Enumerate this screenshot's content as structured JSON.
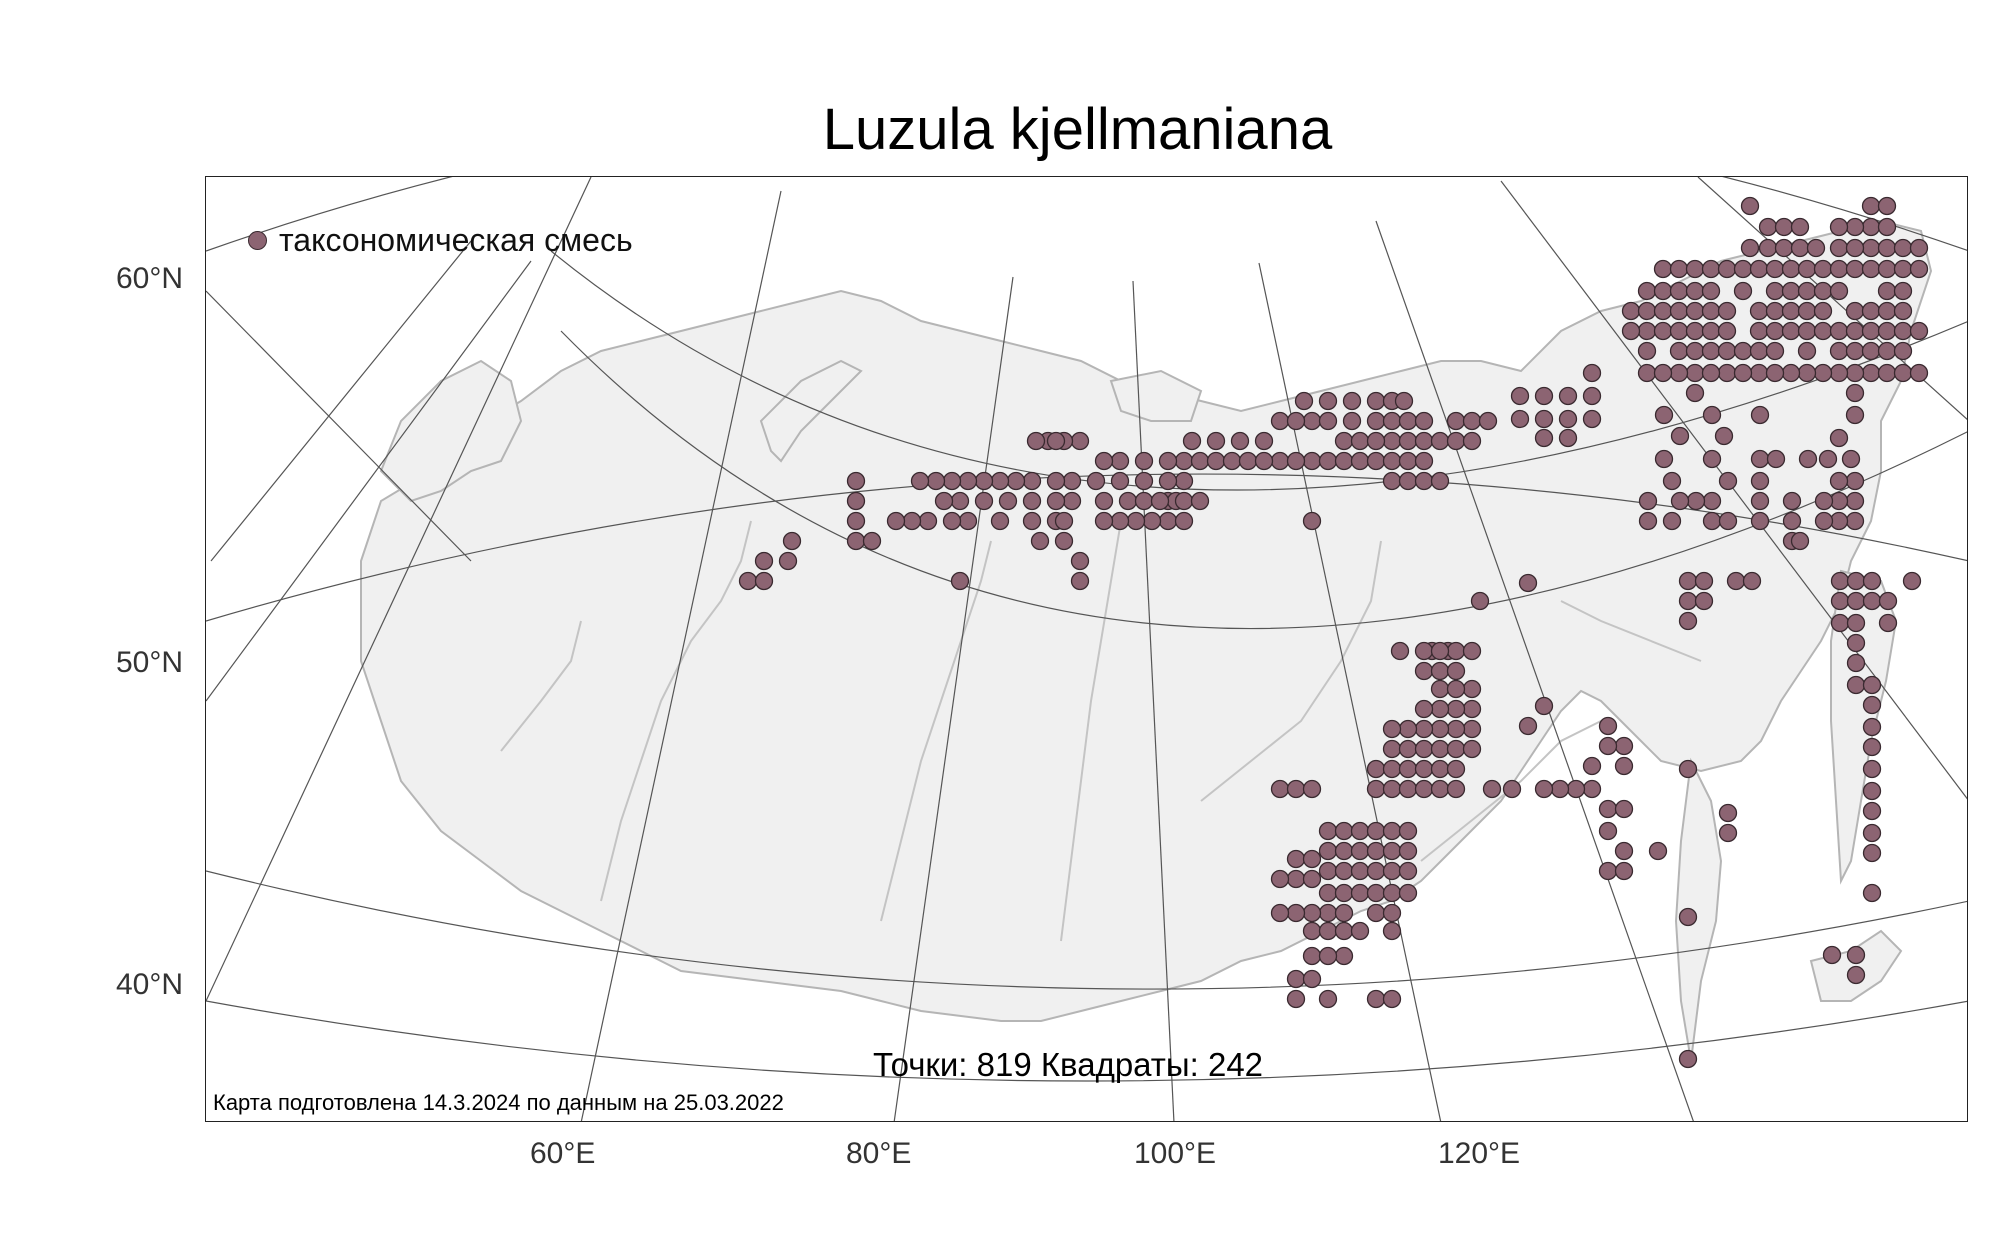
{
  "title": "Luzula kjellmaniana",
  "legend": {
    "label": "таксономическая смесь",
    "color": "#8c6472"
  },
  "stats": "Точки: 819 Квадраты: 242",
  "footnote": "Карта подготовлена 14.3.2024 по данным на 25.03.2022",
  "lat_ticks": [
    "60°N",
    "50°N",
    "40°N"
  ],
  "lon_ticks": [
    "60°E",
    "80°E",
    "100°E",
    "120°E"
  ],
  "colors": {
    "land": "#f0f0f0",
    "coast": "#b5b5b5",
    "river": "#c4c4c4",
    "grid": "#555555",
    "dot": "#8c6472",
    "dot_edge": "#3a2a30"
  },
  "occurrences": [
    [
      1749,
      205
    ],
    [
      1749,
      247
    ],
    [
      1767,
      247
    ],
    [
      1783,
      247
    ],
    [
      1799,
      247
    ],
    [
      1815,
      247
    ],
    [
      1767,
      226
    ],
    [
      1783,
      226
    ],
    [
      1799,
      226
    ],
    [
      1662,
      268
    ],
    [
      1678,
      268
    ],
    [
      1694,
      268
    ],
    [
      1710,
      268
    ],
    [
      1726,
      268
    ],
    [
      1742,
      268
    ],
    [
      1758,
      268
    ],
    [
      1774,
      268
    ],
    [
      1790,
      268
    ],
    [
      1806,
      268
    ],
    [
      1822,
      268
    ],
    [
      1838,
      268
    ],
    [
      1854,
      268
    ],
    [
      1870,
      268
    ],
    [
      1886,
      268
    ],
    [
      1902,
      268
    ],
    [
      1646,
      290
    ],
    [
      1662,
      290
    ],
    [
      1678,
      290
    ],
    [
      1694,
      290
    ],
    [
      1710,
      290
    ],
    [
      1742,
      290
    ],
    [
      1774,
      290
    ],
    [
      1790,
      290
    ],
    [
      1806,
      290
    ],
    [
      1822,
      290
    ],
    [
      1838,
      290
    ],
    [
      1630,
      310
    ],
    [
      1646,
      310
    ],
    [
      1662,
      310
    ],
    [
      1678,
      310
    ],
    [
      1694,
      310
    ],
    [
      1710,
      310
    ],
    [
      1726,
      310
    ],
    [
      1758,
      310
    ],
    [
      1774,
      310
    ],
    [
      1790,
      310
    ],
    [
      1806,
      310
    ],
    [
      1822,
      310
    ],
    [
      1646,
      330
    ],
    [
      1662,
      330
    ],
    [
      1678,
      330
    ],
    [
      1694,
      330
    ],
    [
      1710,
      330
    ],
    [
      1726,
      330
    ],
    [
      1758,
      330
    ],
    [
      1774,
      330
    ],
    [
      1790,
      330
    ],
    [
      1806,
      330
    ],
    [
      1822,
      330
    ],
    [
      1646,
      350
    ],
    [
      1678,
      350
    ],
    [
      1694,
      350
    ],
    [
      1710,
      350
    ],
    [
      1726,
      350
    ],
    [
      1742,
      350
    ],
    [
      1758,
      350
    ],
    [
      1774,
      350
    ],
    [
      1806,
      350
    ],
    [
      1838,
      350
    ],
    [
      1854,
      350
    ],
    [
      1870,
      350
    ],
    [
      1886,
      350
    ],
    [
      1646,
      372
    ],
    [
      1694,
      372
    ],
    [
      1726,
      372
    ],
    [
      1758,
      372
    ],
    [
      1870,
      372
    ],
    [
      1886,
      372
    ],
    [
      1902,
      372
    ],
    [
      1918,
      372
    ],
    [
      1838,
      330
    ],
    [
      1854,
      330
    ],
    [
      1870,
      330
    ],
    [
      1886,
      330
    ],
    [
      1902,
      330
    ],
    [
      1918,
      330
    ],
    [
      1854,
      310
    ],
    [
      1870,
      310
    ],
    [
      1886,
      310
    ],
    [
      1902,
      310
    ],
    [
      1886,
      290
    ],
    [
      1902,
      290
    ],
    [
      1886,
      268
    ],
    [
      1870,
      205
    ],
    [
      1886,
      205
    ],
    [
      1870,
      226
    ],
    [
      1886,
      226
    ],
    [
      1870,
      247
    ],
    [
      1886,
      247
    ],
    [
      1902,
      247
    ],
    [
      1918,
      247
    ],
    [
      1902,
      268
    ],
    [
      1918,
      268
    ],
    [
      1854,
      226
    ],
    [
      1838,
      226
    ],
    [
      1838,
      247
    ],
    [
      1854,
      247
    ],
    [
      1886,
      350
    ],
    [
      1902,
      350
    ],
    [
      1854,
      372
    ],
    [
      1854,
      392
    ],
    [
      1854,
      414
    ],
    [
      1870,
      330
    ],
    [
      1870,
      350
    ],
    [
      1854,
      350
    ],
    [
      1870,
      372
    ],
    [
      1838,
      372
    ],
    [
      1822,
      372
    ],
    [
      1806,
      372
    ],
    [
      1790,
      372
    ],
    [
      1774,
      372
    ],
    [
      1758,
      372
    ],
    [
      1742,
      372
    ],
    [
      1726,
      372
    ],
    [
      1710,
      372
    ],
    [
      1694,
      372
    ],
    [
      1678,
      372
    ],
    [
      1662,
      372
    ],
    [
      1646,
      372
    ],
    [
      1694,
      392
    ],
    [
      1662,
      330
    ],
    [
      1630,
      330
    ],
    [
      1646,
      330
    ],
    [
      1519,
      395
    ],
    [
      1543,
      395
    ],
    [
      1567,
      395
    ],
    [
      1591,
      395
    ],
    [
      1519,
      418
    ],
    [
      1543,
      418
    ],
    [
      1567,
      418
    ],
    [
      1591,
      418
    ],
    [
      1543,
      437
    ],
    [
      1567,
      437
    ],
    [
      1591,
      372
    ],
    [
      1663,
      414
    ],
    [
      1711,
      414
    ],
    [
      1759,
      414
    ],
    [
      1679,
      435
    ],
    [
      1723,
      435
    ],
    [
      1663,
      458
    ],
    [
      1711,
      458
    ],
    [
      1759,
      458
    ],
    [
      1775,
      458
    ],
    [
      1807,
      458
    ],
    [
      1827,
      458
    ],
    [
      1850,
      458
    ],
    [
      1838,
      437
    ],
    [
      1854,
      480
    ],
    [
      1838,
      480
    ],
    [
      1854,
      500
    ],
    [
      1838,
      500
    ],
    [
      1854,
      520
    ],
    [
      1838,
      520
    ],
    [
      1711,
      500
    ],
    [
      1759,
      500
    ],
    [
      1791,
      500
    ],
    [
      1823,
      500
    ],
    [
      1647,
      520
    ],
    [
      1671,
      520
    ],
    [
      1711,
      520
    ],
    [
      1727,
      520
    ],
    [
      1759,
      520
    ],
    [
      1791,
      520
    ],
    [
      1823,
      520
    ],
    [
      1791,
      540
    ],
    [
      1799,
      540
    ],
    [
      1695,
      500
    ],
    [
      1679,
      500
    ],
    [
      1647,
      500
    ],
    [
      1727,
      480
    ],
    [
      1759,
      480
    ],
    [
      1671,
      480
    ],
    [
      1687,
      580
    ],
    [
      1703,
      580
    ],
    [
      1735,
      580
    ],
    [
      1751,
      580
    ],
    [
      1687,
      600
    ],
    [
      1703,
      600
    ],
    [
      1687,
      620
    ],
    [
      1839,
      580
    ],
    [
      1855,
      580
    ],
    [
      1871,
      580
    ],
    [
      1839,
      600
    ],
    [
      1855,
      600
    ],
    [
      1839,
      622
    ],
    [
      1855,
      622
    ],
    [
      1871,
      600
    ],
    [
      1887,
      600
    ],
    [
      1887,
      622
    ],
    [
      1855,
      642
    ],
    [
      1855,
      662
    ],
    [
      1855,
      684
    ],
    [
      1871,
      684
    ],
    [
      1871,
      704
    ],
    [
      1871,
      726
    ],
    [
      1871,
      746
    ],
    [
      1871,
      768
    ],
    [
      1871,
      790
    ],
    [
      1871,
      810
    ],
    [
      1871,
      832
    ],
    [
      1871,
      852
    ],
    [
      1871,
      892
    ],
    [
      1911,
      580
    ],
    [
      1687,
      768
    ],
    [
      1727,
      812
    ],
    [
      1727,
      832
    ],
    [
      1687,
      916
    ],
    [
      1831,
      954
    ],
    [
      1855,
      954
    ],
    [
      1855,
      974
    ],
    [
      1687,
      1058
    ],
    [
      1527,
      582
    ],
    [
      1479,
      600
    ],
    [
      1607,
      725
    ],
    [
      1623,
      745
    ],
    [
      1607,
      745
    ],
    [
      1591,
      765
    ],
    [
      1623,
      765
    ],
    [
      1591,
      788
    ],
    [
      1575,
      788
    ],
    [
      1559,
      788
    ],
    [
      1543,
      788
    ],
    [
      1543,
      705
    ],
    [
      1527,
      725
    ],
    [
      1511,
      788
    ],
    [
      1491,
      788
    ],
    [
      1607,
      808
    ],
    [
      1623,
      808
    ],
    [
      1607,
      830
    ],
    [
      1623,
      850
    ],
    [
      1607,
      870
    ],
    [
      1623,
      870
    ],
    [
      1657,
      850
    ],
    [
      1303,
      400
    ],
    [
      1327,
      400
    ],
    [
      1351,
      400
    ],
    [
      1375,
      400
    ],
    [
      1391,
      400
    ],
    [
      1403,
      400
    ],
    [
      1311,
      420
    ],
    [
      1327,
      420
    ],
    [
      1351,
      420
    ],
    [
      1375,
      420
    ],
    [
      1391,
      420
    ],
    [
      1407,
      420
    ],
    [
      1343,
      440
    ],
    [
      1391,
      440
    ],
    [
      1407,
      440
    ],
    [
      1423,
      440
    ],
    [
      1439,
      440
    ],
    [
      1455,
      440
    ],
    [
      1471,
      440
    ],
    [
      1311,
      460
    ],
    [
      1327,
      460
    ],
    [
      1343,
      460
    ],
    [
      1359,
      460
    ],
    [
      1375,
      460
    ],
    [
      1391,
      460
    ],
    [
      1407,
      460
    ],
    [
      1423,
      460
    ],
    [
      1279,
      420
    ],
    [
      1295,
      420
    ],
    [
      1359,
      440
    ],
    [
      1375,
      440
    ],
    [
      1391,
      480
    ],
    [
      1407,
      480
    ],
    [
      1423,
      480
    ],
    [
      1439,
      480
    ],
    [
      1455,
      420
    ],
    [
      1471,
      420
    ],
    [
      1487,
      420
    ],
    [
      1423,
      420
    ],
    [
      1407,
      480
    ],
    [
      1391,
      480
    ],
    [
      1191,
      440
    ],
    [
      1215,
      440
    ],
    [
      1239,
      440
    ],
    [
      1263,
      440
    ],
    [
      1279,
      460
    ],
    [
      1295,
      460
    ],
    [
      1311,
      460
    ],
    [
      1183,
      460
    ],
    [
      1199,
      460
    ],
    [
      1215,
      460
    ],
    [
      1231,
      460
    ],
    [
      1247,
      460
    ],
    [
      1263,
      460
    ],
    [
      1167,
      460
    ],
    [
      1143,
      460
    ],
    [
      1119,
      460
    ],
    [
      1103,
      460
    ],
    [
      1079,
      440
    ],
    [
      1063,
      440
    ],
    [
      1047,
      440
    ],
    [
      1183,
      480
    ],
    [
      1167,
      480
    ],
    [
      1143,
      480
    ],
    [
      1119,
      480
    ],
    [
      1095,
      480
    ],
    [
      1071,
      480
    ],
    [
      1055,
      480
    ],
    [
      1031,
      480
    ],
    [
      1015,
      480
    ],
    [
      999,
      480
    ],
    [
      983,
      480
    ],
    [
      967,
      480
    ],
    [
      951,
      480
    ],
    [
      935,
      480
    ],
    [
      919,
      480
    ],
    [
      1103,
      500
    ],
    [
      1071,
      500
    ],
    [
      1055,
      500
    ],
    [
      1031,
      500
    ],
    [
      1007,
      500
    ],
    [
      983,
      500
    ],
    [
      959,
      500
    ],
    [
      943,
      500
    ],
    [
      1031,
      520
    ],
    [
      999,
      520
    ],
    [
      967,
      520
    ],
    [
      951,
      520
    ],
    [
      927,
      520
    ],
    [
      911,
      520
    ],
    [
      895,
      520
    ],
    [
      1039,
      540
    ],
    [
      1063,
      540
    ],
    [
      1079,
      560
    ],
    [
      1079,
      580
    ],
    [
      959,
      580
    ],
    [
      855,
      480
    ],
    [
      855,
      500
    ],
    [
      855,
      520
    ],
    [
      855,
      540
    ],
    [
      871,
      540
    ],
    [
      1167,
      520
    ],
    [
      1183,
      520
    ],
    [
      791,
      540
    ],
    [
      787,
      560
    ],
    [
      763,
      560
    ],
    [
      747,
      580
    ],
    [
      763,
      580
    ],
    [
      1055,
      520
    ],
    [
      1063,
      520
    ],
    [
      1127,
      500
    ],
    [
      1143,
      500
    ],
    [
      1167,
      500
    ],
    [
      1175,
      500
    ],
    [
      1159,
      500
    ],
    [
      1183,
      500
    ],
    [
      1199,
      500
    ],
    [
      1311,
      520
    ],
    [
      1151,
      520
    ],
    [
      1135,
      520
    ],
    [
      1119,
      520
    ],
    [
      1103,
      520
    ],
    [
      1055,
      440
    ],
    [
      1035,
      440
    ],
    [
      1279,
      788
    ],
    [
      1295,
      788
    ],
    [
      1311,
      788
    ],
    [
      1399,
      650
    ],
    [
      1431,
      650
    ],
    [
      1447,
      650
    ],
    [
      1455,
      650
    ],
    [
      1471,
      650
    ],
    [
      1471,
      688
    ],
    [
      1439,
      688
    ],
    [
      1455,
      688
    ],
    [
      1471,
      708
    ],
    [
      1455,
      708
    ],
    [
      1439,
      708
    ],
    [
      1423,
      708
    ],
    [
      1471,
      728
    ],
    [
      1455,
      728
    ],
    [
      1439,
      728
    ],
    [
      1423,
      728
    ],
    [
      1407,
      728
    ],
    [
      1391,
      728
    ],
    [
      1391,
      748
    ],
    [
      1407,
      748
    ],
    [
      1423,
      748
    ],
    [
      1439,
      748
    ],
    [
      1455,
      748
    ],
    [
      1471,
      748
    ],
    [
      1375,
      768
    ],
    [
      1391,
      768
    ],
    [
      1407,
      768
    ],
    [
      1423,
      768
    ],
    [
      1439,
      768
    ],
    [
      1455,
      768
    ],
    [
      1375,
      788
    ],
    [
      1391,
      788
    ],
    [
      1407,
      788
    ],
    [
      1423,
      788
    ],
    [
      1439,
      788
    ],
    [
      1455,
      788
    ],
    [
      1327,
      830
    ],
    [
      1343,
      830
    ],
    [
      1359,
      830
    ],
    [
      1375,
      830
    ],
    [
      1391,
      830
    ],
    [
      1407,
      830
    ],
    [
      1327,
      850
    ],
    [
      1343,
      850
    ],
    [
      1359,
      850
    ],
    [
      1375,
      850
    ],
    [
      1391,
      850
    ],
    [
      1407,
      850
    ],
    [
      1327,
      870
    ],
    [
      1343,
      870
    ],
    [
      1359,
      870
    ],
    [
      1375,
      870
    ],
    [
      1391,
      870
    ],
    [
      1407,
      870
    ],
    [
      1327,
      892
    ],
    [
      1343,
      892
    ],
    [
      1359,
      892
    ],
    [
      1375,
      892
    ],
    [
      1391,
      892
    ],
    [
      1407,
      892
    ],
    [
      1327,
      912
    ],
    [
      1343,
      912
    ],
    [
      1375,
      912
    ],
    [
      1391,
      912
    ],
    [
      1311,
      930
    ],
    [
      1327,
      930
    ],
    [
      1343,
      930
    ],
    [
      1359,
      930
    ],
    [
      1391,
      930
    ],
    [
      1311,
      955
    ],
    [
      1343,
      955
    ],
    [
      1327,
      955
    ],
    [
      1295,
      978
    ],
    [
      1311,
      978
    ],
    [
      1295,
      998
    ],
    [
      1327,
      998
    ],
    [
      1375,
      998
    ],
    [
      1391,
      998
    ],
    [
      1311,
      912
    ],
    [
      1295,
      912
    ],
    [
      1279,
      912
    ],
    [
      1423,
      650
    ],
    [
      1439,
      650
    ],
    [
      1423,
      670
    ],
    [
      1439,
      670
    ],
    [
      1455,
      670
    ],
    [
      1295,
      858
    ],
    [
      1311,
      858
    ],
    [
      1295,
      878
    ],
    [
      1311,
      878
    ],
    [
      1279,
      878
    ]
  ]
}
